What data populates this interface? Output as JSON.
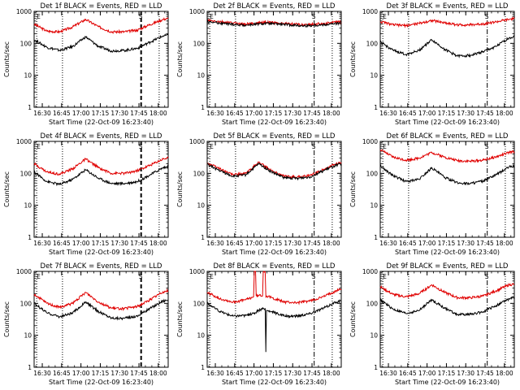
{
  "figure": {
    "grid_rows": 3,
    "grid_cols": 3,
    "background": "#ffffff"
  },
  "colors": {
    "events": "#000000",
    "lld": "#e00000",
    "axes": "#000000"
  },
  "chart_data": [
    {
      "type": "line",
      "title": "Det 1f BLACK = Events, RED = LLD",
      "xlabel": "Start Time (22-Oct-09 16:23:40)",
      "ylabel": "Counts/sec",
      "x_ticks": [
        "16:30",
        "16:45",
        "17:00",
        "17:15",
        "17:30",
        "17:45",
        "18:00"
      ],
      "y_ticks": [
        "1",
        "10",
        "100",
        "1000"
      ],
      "xlim_minutes_after_start": [
        0,
        104
      ],
      "ylim": [
        1,
        1000
      ],
      "yscale": "log",
      "markers": [
        {
          "label": "E",
          "x_minutes_after_start": 2,
          "style": "dotted"
        },
        {
          "label": "",
          "x_minutes_after_start": 22,
          "style": "dotted"
        },
        {
          "label": "S",
          "x_minutes_after_start": 83,
          "style": "dashed-thick"
        },
        {
          "label": "",
          "x_minutes_after_start": 97,
          "style": "dotted"
        }
      ],
      "series": [
        {
          "name": "LLD",
          "color": "#e00000",
          "x_minutes_after_start": [
            0,
            10,
            20,
            30,
            40,
            50,
            60,
            70,
            80,
            90,
            100,
            104
          ],
          "values": [
            400,
            240,
            230,
            330,
            560,
            330,
            230,
            230,
            260,
            390,
            560,
            600
          ]
        },
        {
          "name": "Events",
          "color": "#000000",
          "x_minutes_after_start": [
            0,
            10,
            20,
            30,
            40,
            50,
            60,
            70,
            80,
            90,
            100,
            104
          ],
          "values": [
            130,
            75,
            60,
            80,
            160,
            80,
            58,
            60,
            70,
            110,
            170,
            180
          ]
        }
      ]
    },
    {
      "type": "line",
      "title": "Det 2f BLACK = Events, RED = LLD",
      "xlabel": "Start Time (22-Oct-09 16:23:40)",
      "ylabel": "Counts/sec",
      "x_ticks": [
        "16:30",
        "16:45",
        "17:00",
        "17:15",
        "17:30",
        "17:45",
        "18:00"
      ],
      "y_ticks": [
        "1",
        "10",
        "100",
        "1000"
      ],
      "xlim_minutes_after_start": [
        0,
        104
      ],
      "ylim": [
        1,
        1000
      ],
      "yscale": "log",
      "markers": [
        {
          "label": "E",
          "x_minutes_after_start": 2,
          "style": "dotted"
        },
        {
          "label": "",
          "x_minutes_after_start": 22,
          "style": "dotted"
        },
        {
          "label": "S",
          "x_minutes_after_start": 83,
          "style": "dashdot"
        },
        {
          "label": "",
          "x_minutes_after_start": 97,
          "style": "dotted"
        }
      ],
      "series": [
        {
          "name": "LLD",
          "color": "#e00000",
          "x_minutes_after_start": [
            0,
            15,
            30,
            45,
            60,
            75,
            90,
            104
          ],
          "values": [
            520,
            450,
            400,
            460,
            420,
            380,
            420,
            470
          ]
        },
        {
          "name": "Events",
          "color": "#000000",
          "x_minutes_after_start": [
            0,
            15,
            30,
            45,
            60,
            75,
            90,
            104
          ],
          "values": [
            480,
            410,
            370,
            420,
            390,
            350,
            380,
            430
          ]
        }
      ]
    },
    {
      "type": "line",
      "title": "Det 3f BLACK = Events, RED = LLD",
      "xlabel": "Start Time (22-Oct-09 16:23:40)",
      "ylabel": "Counts/sec",
      "x_ticks": [
        "16:30",
        "16:45",
        "17:00",
        "17:15",
        "17:30",
        "17:45",
        "18:00"
      ],
      "y_ticks": [
        "1",
        "10",
        "100",
        "1000"
      ],
      "xlim_minutes_after_start": [
        0,
        104
      ],
      "ylim": [
        1,
        1000
      ],
      "yscale": "log",
      "markers": [
        {
          "label": "E",
          "x_minutes_after_start": 2,
          "style": "dotted"
        },
        {
          "label": "",
          "x_minutes_after_start": 22,
          "style": "dotted"
        },
        {
          "label": "S",
          "x_minutes_after_start": 83,
          "style": "dashdot"
        },
        {
          "label": "",
          "x_minutes_after_start": 97,
          "style": "dotted"
        }
      ],
      "series": [
        {
          "name": "LLD",
          "color": "#e00000",
          "x_minutes_after_start": [
            0,
            10,
            20,
            30,
            40,
            50,
            60,
            70,
            80,
            90,
            100,
            104
          ],
          "values": [
            480,
            380,
            360,
            420,
            520,
            440,
            380,
            380,
            410,
            470,
            560,
            600
          ]
        },
        {
          "name": "Events",
          "color": "#000000",
          "x_minutes_after_start": [
            0,
            10,
            20,
            30,
            40,
            50,
            60,
            70,
            80,
            90,
            100,
            104
          ],
          "values": [
            110,
            60,
            45,
            60,
            130,
            65,
            40,
            42,
            55,
            80,
            150,
            160
          ]
        }
      ]
    },
    {
      "type": "line",
      "title": "Det 4f BLACK = Events, RED = LLD",
      "xlabel": "Start Time (22-Oct-09 16:23:40)",
      "ylabel": "Counts/sec",
      "x_ticks": [
        "16:30",
        "16:45",
        "17:00",
        "17:15",
        "17:30",
        "17:45",
        "18:00"
      ],
      "y_ticks": [
        "1",
        "10",
        "100",
        "1000"
      ],
      "xlim_minutes_after_start": [
        0,
        104
      ],
      "ylim": [
        1,
        1000
      ],
      "yscale": "log",
      "markers": [
        {
          "label": "E",
          "x_minutes_after_start": 2,
          "style": "dotted"
        },
        {
          "label": "",
          "x_minutes_after_start": 22,
          "style": "dotted"
        },
        {
          "label": "S",
          "x_minutes_after_start": 83,
          "style": "dashed-thick"
        },
        {
          "label": "",
          "x_minutes_after_start": 97,
          "style": "dotted"
        }
      ],
      "series": [
        {
          "name": "LLD",
          "color": "#e00000",
          "x_minutes_after_start": [
            0,
            10,
            20,
            30,
            40,
            50,
            60,
            70,
            80,
            90,
            100,
            104
          ],
          "values": [
            200,
            110,
            95,
            140,
            280,
            150,
            100,
            100,
            120,
            180,
            280,
            300
          ]
        },
        {
          "name": "Events",
          "color": "#000000",
          "x_minutes_after_start": [
            0,
            10,
            20,
            30,
            40,
            50,
            60,
            70,
            80,
            90,
            100,
            104
          ],
          "values": [
            110,
            55,
            45,
            65,
            130,
            70,
            48,
            48,
            55,
            90,
            150,
            160
          ]
        }
      ]
    },
    {
      "type": "line",
      "title": "Det 5f BLACK = Events, RED = LLD",
      "xlabel": "Start Time (22-Oct-09 16:23:40)",
      "ylabel": "Counts/sec",
      "x_ticks": [
        "16:30",
        "16:45",
        "17:00",
        "17:15",
        "17:30",
        "17:45",
        "18:00"
      ],
      "y_ticks": [
        "1",
        "10",
        "100",
        "1000"
      ],
      "xlim_minutes_after_start": [
        0,
        104
      ],
      "ylim": [
        1,
        1000
      ],
      "yscale": "log",
      "markers": [
        {
          "label": "E",
          "x_minutes_after_start": 2,
          "style": "dotted"
        },
        {
          "label": "",
          "x_minutes_after_start": 22,
          "style": "dotted"
        },
        {
          "label": "S",
          "x_minutes_after_start": 83,
          "style": "dashdot"
        },
        {
          "label": "",
          "x_minutes_after_start": 97,
          "style": "dotted"
        }
      ],
      "series": [
        {
          "name": "LLD",
          "color": "#e00000",
          "x_minutes_after_start": [
            0,
            10,
            20,
            30,
            40,
            50,
            60,
            70,
            80,
            90,
            100,
            104
          ],
          "values": [
            210,
            140,
            90,
            100,
            220,
            120,
            80,
            78,
            85,
            130,
            200,
            220
          ]
        },
        {
          "name": "Events",
          "color": "#000000",
          "x_minutes_after_start": [
            0,
            10,
            20,
            30,
            40,
            50,
            60,
            70,
            80,
            90,
            100,
            104
          ],
          "values": [
            190,
            120,
            80,
            90,
            200,
            110,
            72,
            70,
            78,
            120,
            180,
            200
          ]
        }
      ]
    },
    {
      "type": "line",
      "title": "Det 6f BLACK = Events, RED = LLD",
      "xlabel": "Start Time (22-Oct-09 16:23:40)",
      "ylabel": "Counts/sec",
      "x_ticks": [
        "16:30",
        "16:45",
        "17:00",
        "17:15",
        "17:30",
        "17:45",
        "18:00"
      ],
      "y_ticks": [
        "1",
        "10",
        "100",
        "1000"
      ],
      "xlim_minutes_after_start": [
        0,
        104
      ],
      "ylim": [
        1,
        1000
      ],
      "yscale": "log",
      "markers": [
        {
          "label": "E",
          "x_minutes_after_start": 2,
          "style": "dotted"
        },
        {
          "label": "",
          "x_minutes_after_start": 22,
          "style": "dotted"
        },
        {
          "label": "S",
          "x_minutes_after_start": 83,
          "style": "dashdot"
        },
        {
          "label": "",
          "x_minutes_after_start": 97,
          "style": "dotted"
        }
      ],
      "series": [
        {
          "name": "LLD",
          "color": "#e00000",
          "x_minutes_after_start": [
            0,
            10,
            20,
            30,
            40,
            50,
            60,
            70,
            80,
            90,
            100,
            104
          ],
          "values": [
            550,
            320,
            260,
            300,
            450,
            320,
            250,
            240,
            260,
            330,
            450,
            480
          ]
        },
        {
          "name": "Events",
          "color": "#000000",
          "x_minutes_after_start": [
            0,
            10,
            20,
            30,
            40,
            50,
            60,
            70,
            80,
            90,
            100,
            104
          ],
          "values": [
            170,
            85,
            55,
            65,
            150,
            75,
            50,
            48,
            58,
            90,
            160,
            170
          ]
        }
      ]
    },
    {
      "type": "line",
      "title": "Det 7f BLACK = Events, RED = LLD",
      "xlabel": "Start Time (22-Oct-09 16:23:40)",
      "ylabel": "Counts/sec",
      "x_ticks": [
        "16:30",
        "16:45",
        "17:00",
        "17:15",
        "17:30",
        "17:45",
        "18:00"
      ],
      "y_ticks": [
        "1",
        "10",
        "100",
        "1000"
      ],
      "xlim_minutes_after_start": [
        0,
        104
      ],
      "ylim": [
        1,
        1000
      ],
      "yscale": "log",
      "markers": [
        {
          "label": "E",
          "x_minutes_after_start": 2,
          "style": "dotted"
        },
        {
          "label": "",
          "x_minutes_after_start": 22,
          "style": "dotted"
        },
        {
          "label": "S",
          "x_minutes_after_start": 83,
          "style": "dashed-thick"
        },
        {
          "label": "",
          "x_minutes_after_start": 97,
          "style": "dotted"
        }
      ],
      "series": [
        {
          "name": "LLD",
          "color": "#e00000",
          "x_minutes_after_start": [
            0,
            10,
            20,
            30,
            40,
            50,
            60,
            70,
            80,
            90,
            100,
            104
          ],
          "values": [
            190,
            100,
            75,
            100,
            220,
            110,
            70,
            68,
            80,
            130,
            230,
            250
          ]
        },
        {
          "name": "Events",
          "color": "#000000",
          "x_minutes_after_start": [
            0,
            10,
            20,
            30,
            40,
            50,
            60,
            70,
            80,
            90,
            100,
            104
          ],
          "values": [
            100,
            50,
            38,
            50,
            110,
            55,
            35,
            34,
            40,
            70,
            120,
            130
          ]
        }
      ]
    },
    {
      "type": "line",
      "title": "Det 8f BLACK = Events, RED = LLD",
      "xlabel": "Start Time (22-Oct-09 16:23:40)",
      "ylabel": "Counts/sec",
      "x_ticks": [
        "16:30",
        "16:45",
        "17:00",
        "17:15",
        "17:30",
        "17:45",
        "18:00"
      ],
      "y_ticks": [
        "1",
        "10",
        "100",
        "1000"
      ],
      "xlim_minutes_after_start": [
        0,
        104
      ],
      "ylim": [
        1,
        1000
      ],
      "yscale": "log",
      "markers": [
        {
          "label": "E",
          "x_minutes_after_start": 2,
          "style": "dotted"
        },
        {
          "label": "",
          "x_minutes_after_start": 22,
          "style": "dotted"
        },
        {
          "label": "S",
          "x_minutes_after_start": 83,
          "style": "dashdot"
        },
        {
          "label": "",
          "x_minutes_after_start": 97,
          "style": "dotted"
        }
      ],
      "series": [
        {
          "name": "LLD",
          "color": "#e00000",
          "x_minutes_after_start": [
            0,
            10,
            20,
            30,
            36,
            36.5,
            37.5,
            38,
            43,
            43.5,
            45,
            45.5,
            50,
            60,
            70,
            80,
            90,
            100,
            104
          ],
          "values": [
            220,
            140,
            110,
            130,
            160,
            1000,
            1000,
            170,
            180,
            1000,
            1000,
            170,
            150,
            110,
            105,
            120,
            160,
            250,
            280
          ]
        },
        {
          "name": "Events",
          "color": "#000000",
          "x_minutes_after_start": [
            0,
            10,
            20,
            30,
            36,
            40,
            45,
            45.5,
            46,
            50,
            60,
            70,
            80,
            90,
            100,
            104
          ],
          "values": [
            100,
            55,
            40,
            42,
            48,
            60,
            70,
            3,
            60,
            55,
            40,
            40,
            48,
            70,
            110,
            120
          ]
        }
      ]
    },
    {
      "type": "line",
      "title": "Det 9f BLACK = Events, RED = LLD",
      "xlabel": "Start Time (22-Oct-09 16:23:40)",
      "ylabel": "Counts/sec",
      "x_ticks": [
        "16:30",
        "16:45",
        "17:00",
        "17:15",
        "17:30",
        "17:45",
        "18:00"
      ],
      "y_ticks": [
        "1",
        "10",
        "100",
        "1000"
      ],
      "xlim_minutes_after_start": [
        0,
        104
      ],
      "ylim": [
        1,
        1000
      ],
      "yscale": "log",
      "markers": [
        {
          "label": "E",
          "x_minutes_after_start": 2,
          "style": "dotted"
        },
        {
          "label": "",
          "x_minutes_after_start": 22,
          "style": "dotted"
        },
        {
          "label": "S",
          "x_minutes_after_start": 83,
          "style": "dashdot"
        },
        {
          "label": "",
          "x_minutes_after_start": 97,
          "style": "dotted"
        }
      ],
      "series": [
        {
          "name": "LLD",
          "color": "#e00000",
          "x_minutes_after_start": [
            0,
            10,
            20,
            30,
            40,
            50,
            60,
            70,
            80,
            90,
            100,
            104
          ],
          "values": [
            330,
            190,
            160,
            200,
            380,
            220,
            150,
            150,
            170,
            250,
            380,
            400
          ]
        },
        {
          "name": "Events",
          "color": "#000000",
          "x_minutes_after_start": [
            0,
            10,
            20,
            30,
            40,
            50,
            60,
            70,
            80,
            90,
            100,
            104
          ],
          "values": [
            130,
            65,
            48,
            60,
            130,
            70,
            45,
            45,
            55,
            85,
            140,
            150
          ]
        }
      ]
    }
  ]
}
